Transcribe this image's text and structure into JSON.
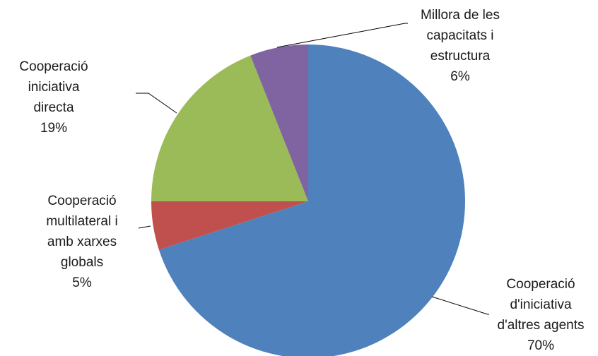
{
  "chart_data": {
    "type": "pie",
    "title": "",
    "slices": [
      {
        "name": "Cooperació d'iniciativa d'altres agents",
        "label_lines": [
          "Cooperació",
          "d'iniciativa",
          "d'altres agents"
        ],
        "value": 70,
        "pct_label": "70%",
        "color": "#4f81bd"
      },
      {
        "name": "Cooperació multilateral i amb xarxes globals",
        "label_lines": [
          "Cooperació",
          "multilateral i",
          "amb xarxes",
          "globals"
        ],
        "value": 5,
        "pct_label": "5%",
        "color": "#c0504d"
      },
      {
        "name": "Cooperació iniciativa directa",
        "label_lines": [
          "Cooperació",
          "iniciativa",
          "directa"
        ],
        "value": 19,
        "pct_label": "19%",
        "color": "#9bbb59"
      },
      {
        "name": "Millora de les capacitats i estructura",
        "label_lines": [
          "Millora de les",
          "capacitats i",
          "estructura"
        ],
        "value": 6,
        "pct_label": "6%",
        "color": "#8064a2"
      }
    ],
    "start_angle": "12 o'clock",
    "direction": "clockwise",
    "legend": "none"
  }
}
